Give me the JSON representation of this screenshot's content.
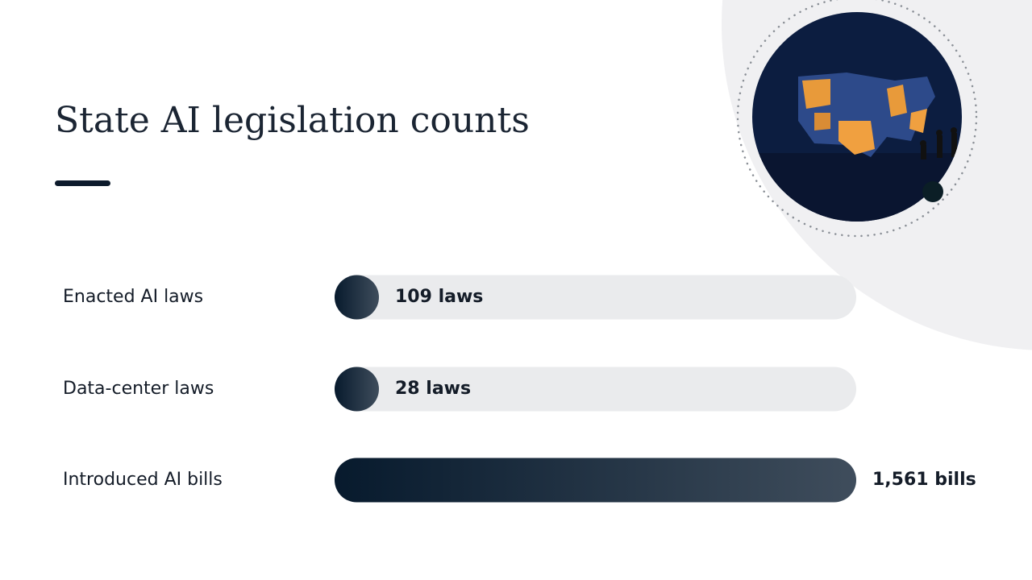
{
  "chart_data": {
    "type": "bar",
    "orientation": "horizontal",
    "title": "State AI legislation counts",
    "categories": [
      "Enacted AI laws",
      "Data-center laws",
      "Introduced AI bills"
    ],
    "values": [
      109,
      28,
      1561
    ],
    "value_labels": [
      "109 laws",
      "28 laws",
      "1,561 bills"
    ],
    "color": "#071a2d"
  }
}
